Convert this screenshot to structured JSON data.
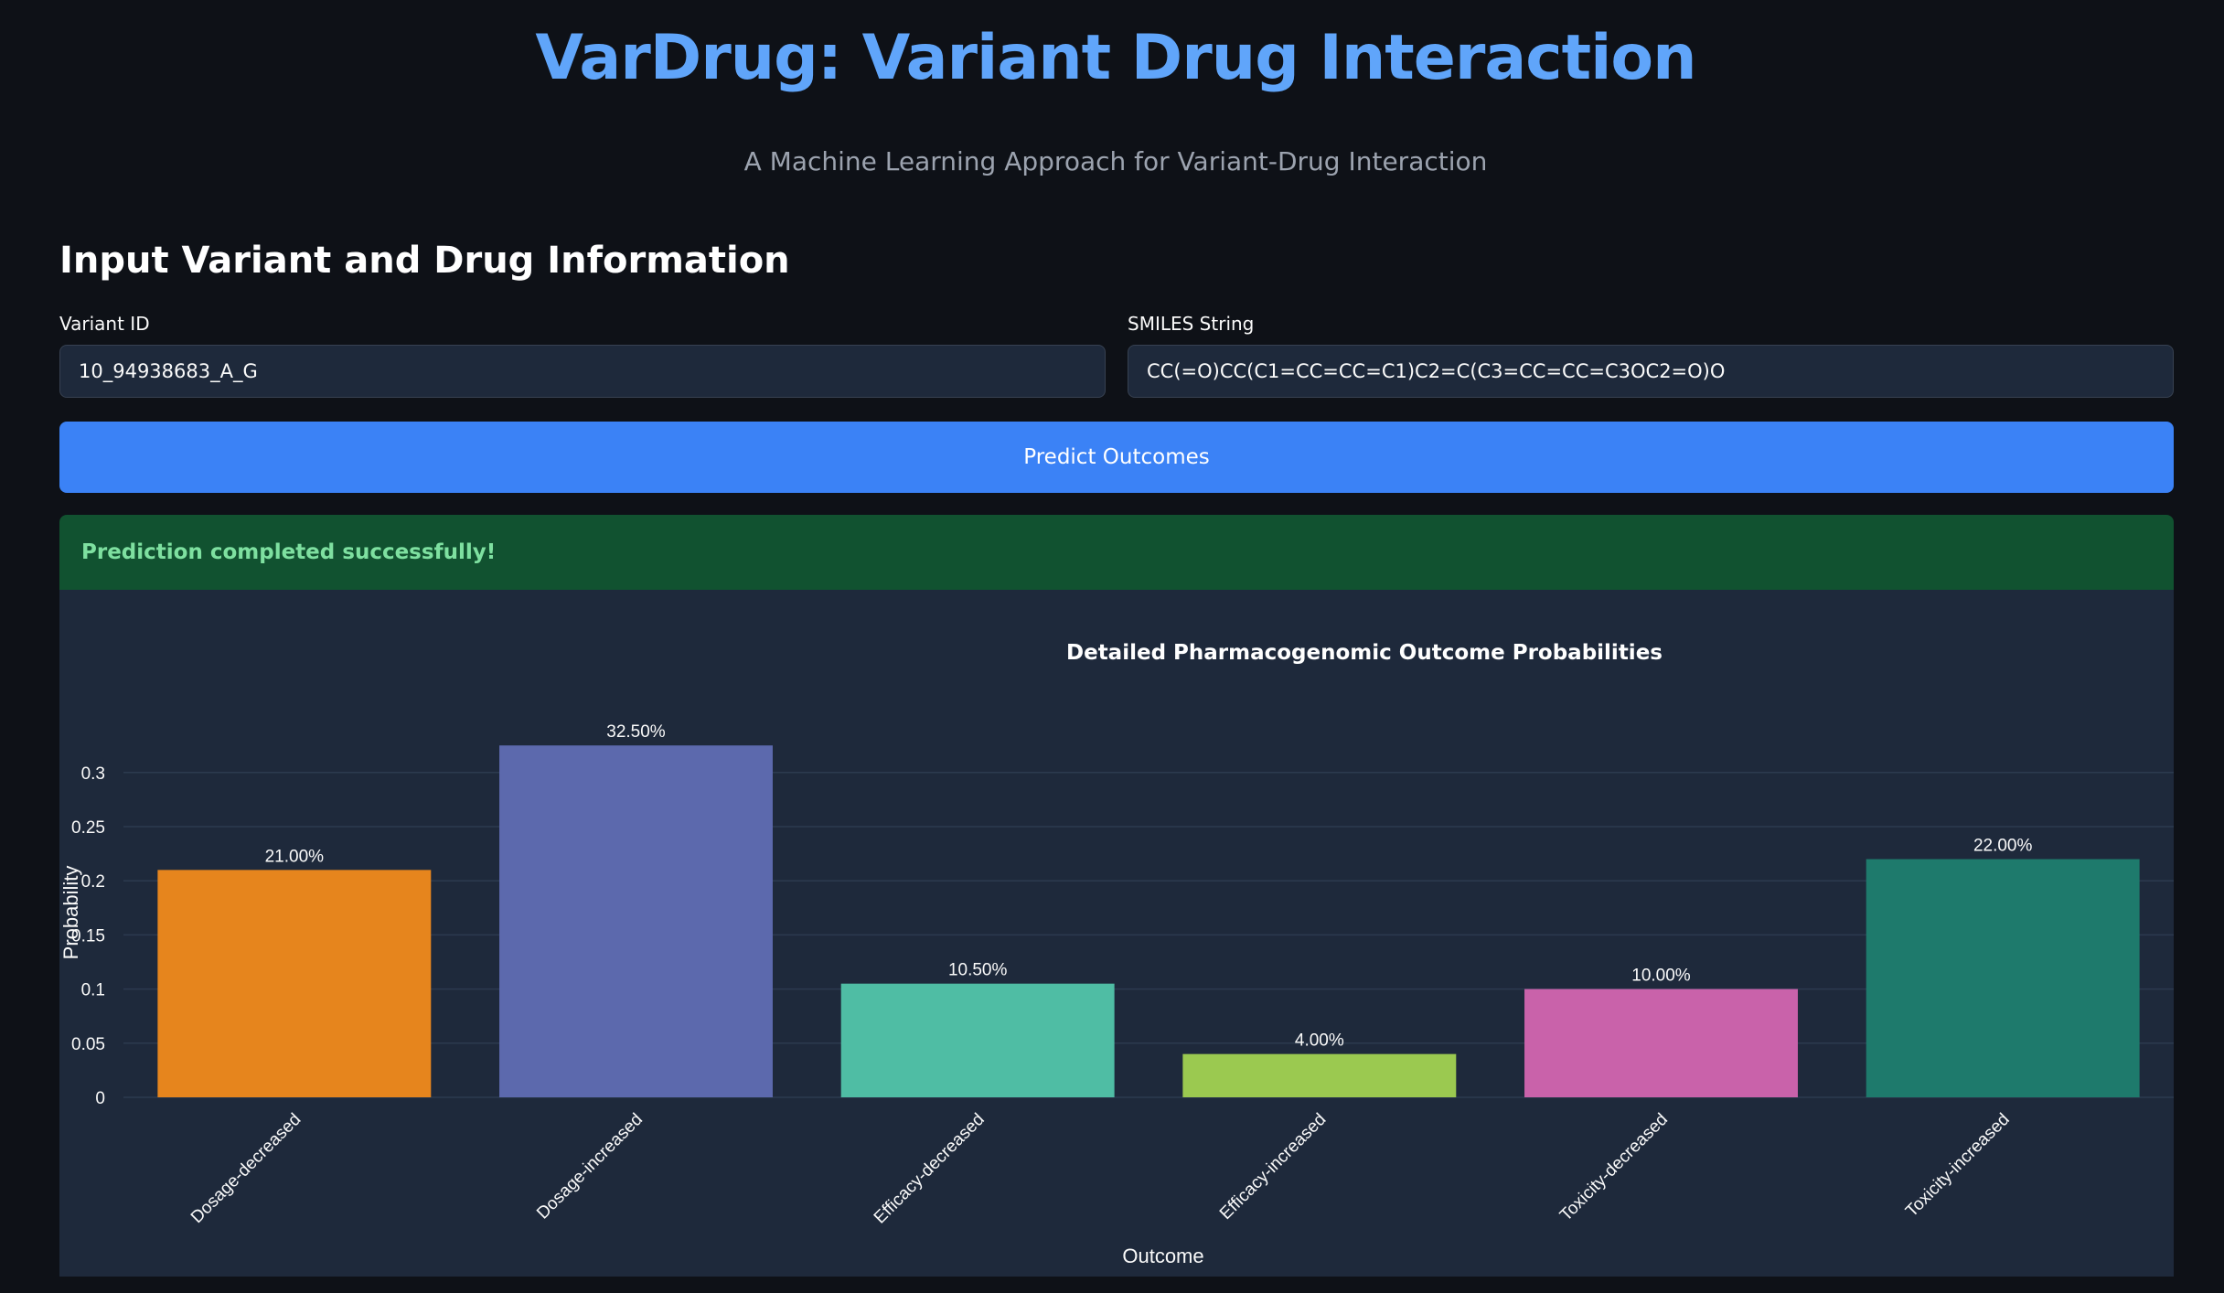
{
  "header": {
    "title": "VarDrug: Variant Drug Interaction",
    "subtitle": "A Machine Learning Approach for Variant-Drug Interaction"
  },
  "form": {
    "heading": "Input Variant and Drug Information",
    "variant_label": "Variant ID",
    "variant_value": "10_94938683_A_G",
    "smiles_label": "SMILES String",
    "smiles_value": "CC(=O)CC(C1=CC=CC=C1)C2=C(C3=CC=CC=C3OC2=O)O",
    "predict_label": "Predict Outcomes"
  },
  "status": {
    "message": "Prediction completed successfully!"
  },
  "colors": {
    "accent": "#3b82f6",
    "title": "#60a5fa",
    "success_bg": "#115230",
    "success_text": "#7ee0a0"
  },
  "chart_data": {
    "type": "bar",
    "title": "Detailed Pharmacogenomic Outcome Probabilities",
    "xlabel": "Outcome",
    "ylabel": "Probability",
    "categories": [
      "Dosage-decreased",
      "Dosage-increased",
      "Efficacy-decreased",
      "Efficacy-increased",
      "Toxicity-decreased",
      "Toxicity-increased"
    ],
    "values": [
      0.21,
      0.325,
      0.105,
      0.04,
      0.1,
      0.22
    ],
    "data_labels": [
      "21.00%",
      "32.50%",
      "10.50%",
      "4.00%",
      "10.00%",
      "22.00%"
    ],
    "colors": [
      "#e6851d",
      "#5c69ad",
      "#4fbda4",
      "#9bc950",
      "#c962aa",
      "#1e7a6c"
    ],
    "yticks": [
      0,
      0.05,
      0.1,
      0.15,
      0.2,
      0.25,
      0.3
    ],
    "ytick_labels": [
      "0",
      "0.05",
      "0.1",
      "0.15",
      "0.2",
      "0.25",
      "0.3"
    ],
    "ylim": [
      0,
      0.34
    ],
    "grid": true
  }
}
